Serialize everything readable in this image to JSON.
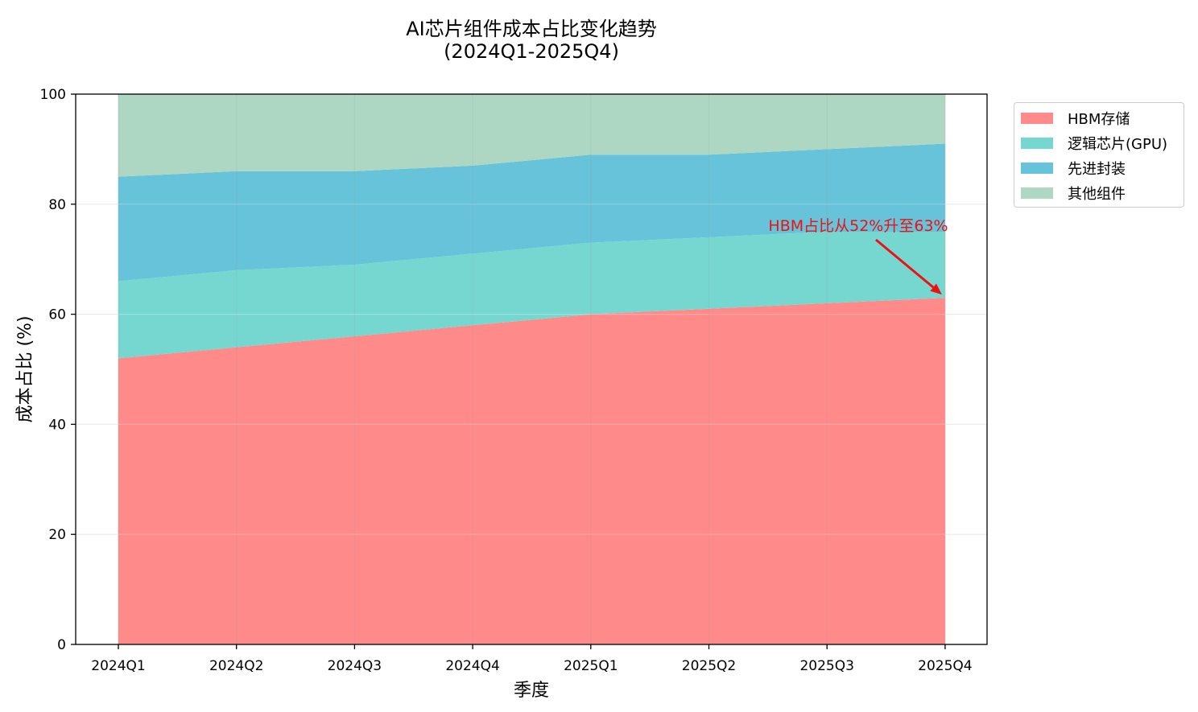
{
  "chart_data": {
    "type": "area",
    "stacked": true,
    "title": "AI芯片组件成本占比变化趋势",
    "subtitle": "(2024Q1-2025Q4)",
    "xlabel": "季度",
    "ylabel": "成本占比 (%)",
    "ylim": [
      0,
      100
    ],
    "yticks": [
      0,
      20,
      40,
      60,
      80,
      100
    ],
    "grid": true,
    "legend_position": "upper right, outside",
    "categories": [
      "2024Q1",
      "2024Q2",
      "2024Q3",
      "2024Q4",
      "2025Q1",
      "2025Q2",
      "2025Q3",
      "2025Q4"
    ],
    "series": [
      {
        "name": "HBM存储",
        "color": "#ff8a8a",
        "values": [
          52,
          54,
          56,
          58,
          60,
          61,
          62,
          63
        ]
      },
      {
        "name": "逻辑芯片(GPU)",
        "color": "#76d7d0",
        "values": [
          14,
          14,
          13,
          13,
          13,
          13,
          13,
          12
        ]
      },
      {
        "name": "先进封装",
        "color": "#67c3d9",
        "values": [
          19,
          18,
          17,
          16,
          16,
          15,
          15,
          16
        ]
      },
      {
        "name": "其他组件",
        "color": "#aed7c3",
        "values": [
          15,
          14,
          14,
          13,
          11,
          11,
          10,
          9
        ]
      }
    ],
    "annotation": {
      "text": "HBM占比从52%升至63%",
      "target_category": "2025Q4",
      "target_value": 63,
      "color": "#ee1111"
    }
  }
}
